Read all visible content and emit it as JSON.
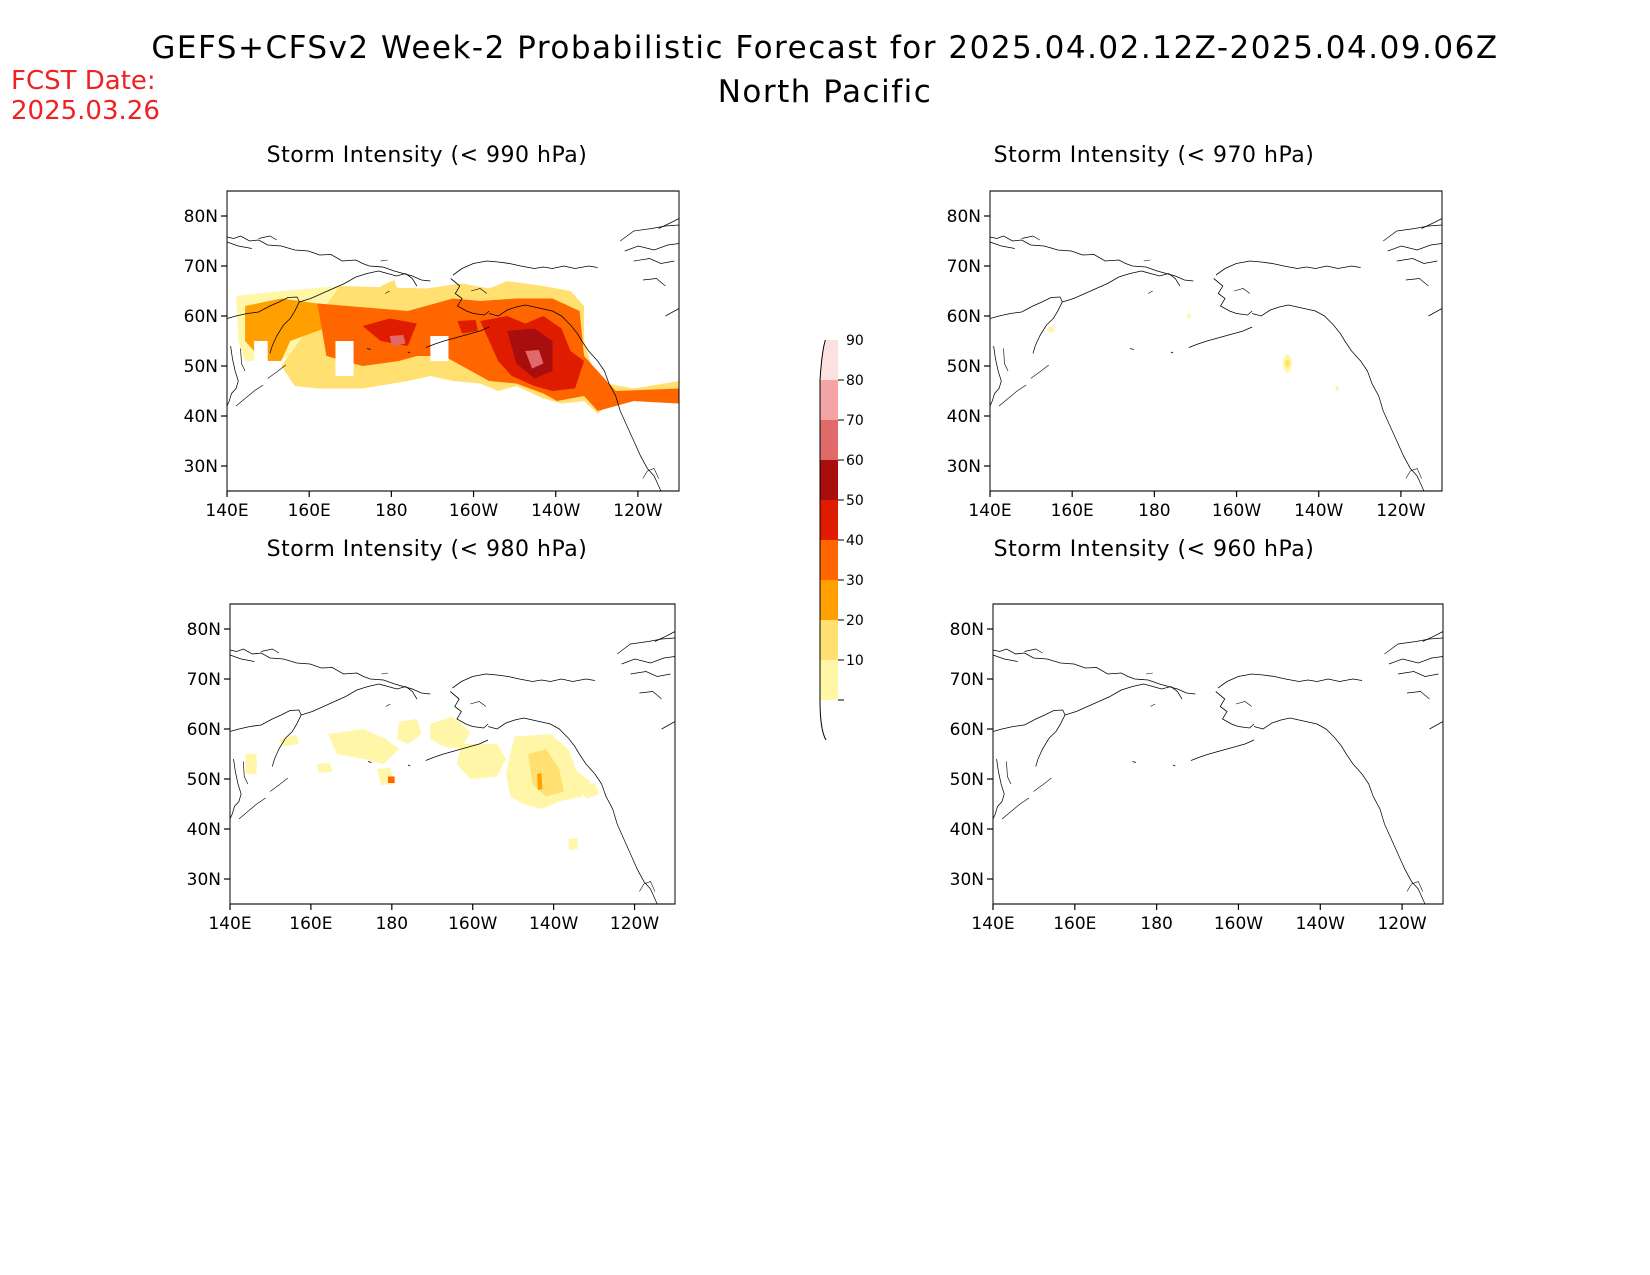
{
  "header": {
    "title": "GEFS+CFSv2 Week-2 Probabilistic Forecast for 2025.04.02.12Z-2025.04.09.06Z",
    "region": "North Pacific",
    "fcst_label": "FCST Date:",
    "fcst_date": "2025.03.26"
  },
  "axes": {
    "lat_labels": [
      "80N",
      "70N",
      "60N",
      "50N",
      "40N",
      "30N"
    ],
    "lon_labels": [
      "140E",
      "160E",
      "180",
      "160W",
      "140W",
      "120W"
    ]
  },
  "panels": [
    {
      "id": "p990",
      "title": "Storm Intensity (< 990 hPa)",
      "coverage": "widespread 10-70% probability band from 140E to 120W between about 40N and 60N, peak near 145W 50N"
    },
    {
      "id": "p970",
      "title": "Storm Intensity (< 970 hPa)",
      "coverage": "isolated 10-20% spots near 148W 49N"
    },
    {
      "id": "p980",
      "title": "Storm Intensity (< 980 hPa)",
      "coverage": "scattered 10-30% patches between 160E and 130W, 43N-58N"
    },
    {
      "id": "p960",
      "title": "Storm Intensity (< 960 hPa)",
      "coverage": "none"
    }
  ],
  "colorbar": {
    "levels": [
      "90",
      "80",
      "70",
      "60",
      "50",
      "40",
      "30",
      "20",
      "10"
    ],
    "colors": [
      "#fde0e0",
      "#f4a4a4",
      "#e06a6a",
      "#a80e0e",
      "#e01c00",
      "#ff6600",
      "#ffa000",
      "#ffe070",
      "#fff6a8"
    ]
  }
}
